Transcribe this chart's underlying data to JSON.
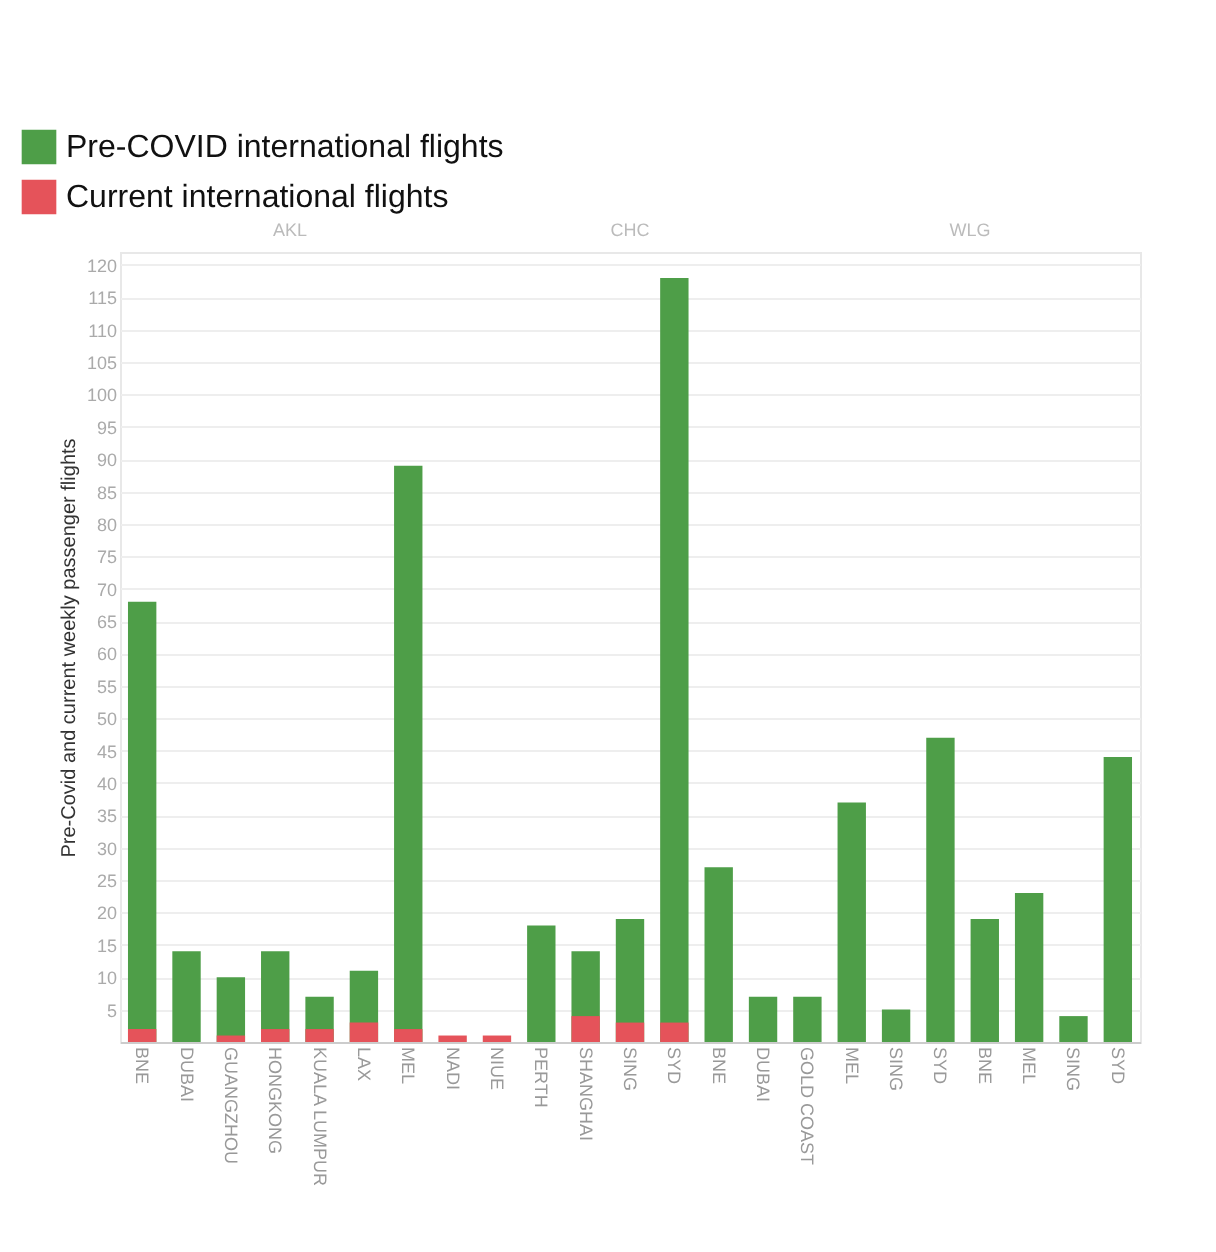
{
  "chart_data": {
    "type": "bar",
    "ylabel": "Pre-Covid and current weekly passenger flights",
    "categories": [
      "BNE",
      "DUBAI",
      "GUANGZHOU",
      "HONGKONG",
      "KUALA LUMPUR",
      "LAX",
      "MEL",
      "NADI",
      "NIUE",
      "PERTH",
      "SHANGHAI",
      "SING",
      "SYD",
      "BNE",
      "DUBAI",
      "GOLD COAST",
      "MEL",
      "SING",
      "SYD",
      "BNE",
      "MEL",
      "SING",
      "SYD"
    ],
    "series": [
      {
        "name": "Pre-COVID international flights",
        "color": "#4e9e48",
        "values": [
          68,
          14,
          10,
          14,
          7,
          11,
          89,
          null,
          null,
          18,
          14,
          19,
          118,
          27,
          7,
          7,
          37,
          5,
          47,
          19,
          23,
          4,
          44
        ]
      },
      {
        "name": "Current international flights",
        "color": "#e5535a",
        "values": [
          2,
          null,
          1,
          2,
          2,
          3,
          2,
          1,
          1,
          null,
          4,
          3,
          3,
          null,
          null,
          null,
          null,
          null,
          null,
          null,
          null,
          null,
          null
        ]
      }
    ],
    "annotations": [
      "AKL",
      "CHC",
      "WLG"
    ],
    "ylim": [
      0,
      122
    ],
    "yticks": [
      5,
      10,
      15,
      20,
      25,
      30,
      35,
      40,
      45,
      50,
      55,
      60,
      65,
      70,
      75,
      80,
      85,
      90,
      95,
      100,
      105,
      110,
      115,
      120
    ],
    "grid": "y",
    "legend": "top left"
  }
}
